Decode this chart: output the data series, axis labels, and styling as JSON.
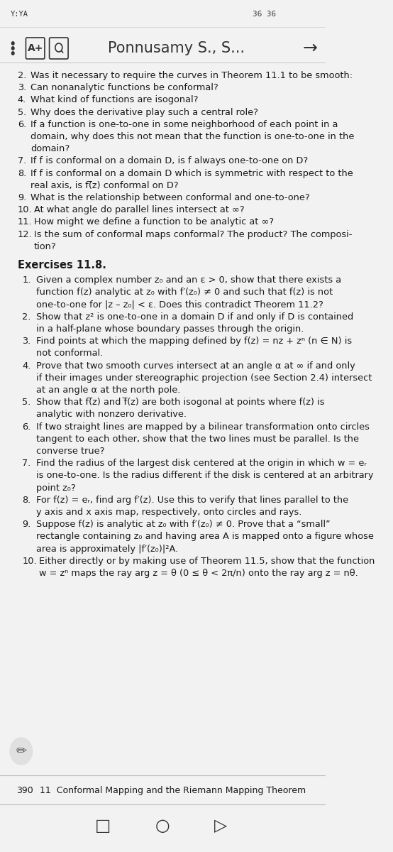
{
  "bg_color": "#f2f2f2",
  "text_color": "#1a1a1a",
  "dark_color": "#333333",
  "header_title": "Ponnusamy S., S...",
  "page_number": "390",
  "footer_text": "11  Conformal Mapping and the Riemann Mapping Theorem",
  "status_left": "Y:YA",
  "status_right": "36  36",
  "body_lines": [
    {
      "type": "question",
      "num": "2.",
      "text": "Was it necessary to require the curves in Theorem 11.1 to be smooth:"
    },
    {
      "type": "question",
      "num": "3.",
      "text": "Can nonanalytic functions be conformal?"
    },
    {
      "type": "question",
      "num": "4.",
      "text": "What kind of functions are isogonal?"
    },
    {
      "type": "question",
      "num": "5.",
      "text": "Why does the derivative play such a central role?"
    },
    {
      "type": "question_wrap",
      "num": "6.",
      "lines": [
        "If a function is one-to-one in some neighborhood of each point in a",
        "domain, why does this not mean that the function is one-to-one in the",
        "domain?"
      ]
    },
    {
      "type": "question_wrap",
      "num": "7.",
      "lines": [
        "If f is conformal on a domain D, is f always one-to-one on D?"
      ]
    },
    {
      "type": "question_wrap",
      "num": "8.",
      "lines": [
        "If f is conformal on a domain D which is symmetric with respect to the",
        "real axis, is f(̅z) conformal on D?"
      ]
    },
    {
      "type": "question",
      "num": "9.",
      "text": "What is the relationship between conformal and one-to-one?"
    },
    {
      "type": "question",
      "num": "10.",
      "text": "At what angle do parallel lines intersect at ∞?"
    },
    {
      "type": "question",
      "num": "11.",
      "text": "How might we define a function to be analytic at ∞?"
    },
    {
      "type": "question_wrap",
      "num": "12.",
      "lines": [
        "Is the sum of conformal maps conformal? The product? The composi-",
        "tion?"
      ]
    },
    {
      "type": "section_header",
      "text": "Exercises 11.8."
    },
    {
      "type": "exercise_wrap",
      "num": "1.",
      "lines": [
        "Given a complex number z₀ and an ε > 0, show that there exists a",
        "function f(z) analytic at z₀ with f′(z₀) ≠ 0 and such that f(z) is not",
        "one-to-one for |z – z₀| < ε. Does this contradict Theorem 11.2?"
      ]
    },
    {
      "type": "exercise_wrap",
      "num": "2.",
      "lines": [
        "Show that z² is one-to-one in a domain D if and only if D is contained",
        "in a half-plane whose boundary passes through the origin."
      ]
    },
    {
      "type": "exercise_wrap",
      "num": "3.",
      "lines": [
        "Find points at which the mapping defined by f(z) = nz + zⁿ (n ∈ N) is",
        "not conformal."
      ]
    },
    {
      "type": "exercise_wrap",
      "num": "4.",
      "lines": [
        "Prove that two smooth curves intersect at an angle α at ∞ if and only",
        "if their images under stereographic projection (see Section 2.4) intersect",
        "at an angle α at the north pole."
      ]
    },
    {
      "type": "exercise_wrap",
      "num": "5.",
      "lines": [
        "Show that f(̅z) and f̅(z) are both isogonal at points where f(z) is",
        "analytic with nonzero derivative."
      ]
    },
    {
      "type": "exercise_wrap",
      "num": "6.",
      "lines": [
        "If two straight lines are mapped by a bilinear transformation onto circles",
        "tangent to each other, show that the two lines must be parallel. Is the",
        "converse true?"
      ]
    },
    {
      "type": "exercise_wrap",
      "num": "7.",
      "lines": [
        "Find the radius of the largest disk centered at the origin in which w = eᵣ",
        "is one-to-one. Is the radius different if the disk is centered at an arbitrary",
        "point z₀?"
      ]
    },
    {
      "type": "exercise_wrap",
      "num": "8.",
      "lines": [
        "For f(z) = eᵣ, find arg f′(z). Use this to verify that lines parallel to the",
        "y axis and x axis map, respectively, onto circles and rays."
      ]
    },
    {
      "type": "exercise_wrap",
      "num": "9.",
      "lines": [
        "Suppose f(z) is analytic at z₀ with f′(z₀) ≠ 0. Prove that a “small”",
        "rectangle containing z₀ and having area A is mapped onto a figure whose",
        "area is approximately |f′(z₀)|²A."
      ]
    },
    {
      "type": "exercise_wrap",
      "num": "10.",
      "lines": [
        "Either directly or by making use of Theorem 11.5, show that the function",
        "w = zⁿ maps the ray arg z = θ (0 ≤ θ < 2π/n) onto the ray arg z = nθ."
      ]
    }
  ]
}
